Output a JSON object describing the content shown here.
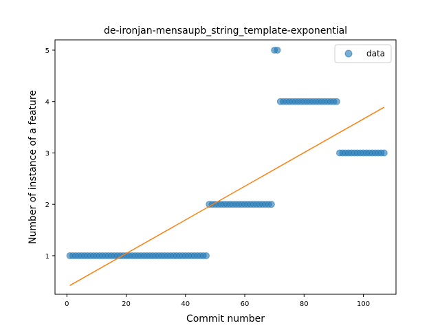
{
  "chart_data": {
    "type": "scatter",
    "title": "de-ironjan-mensaupb_string_template-exponential",
    "xlabel": "Commit number",
    "ylabel": "Number of instance of a feature",
    "xlim": [
      -4,
      111
    ],
    "ylim": [
      0.25,
      5.2
    ],
    "xticks": [
      0,
      20,
      40,
      60,
      80,
      100
    ],
    "yticks": [
      1,
      2,
      3,
      4,
      5
    ],
    "grid": false,
    "legend_position": "top-right",
    "series": [
      {
        "name": "data",
        "kind": "scatter",
        "color": "#1f77b4",
        "segments": [
          {
            "x_from": 1,
            "x_to": 47,
            "y": 1
          },
          {
            "x_from": 48,
            "x_to": 69,
            "y": 2
          },
          {
            "x_from": 70,
            "x_to": 71,
            "y": 5
          },
          {
            "x_from": 72,
            "x_to": 91,
            "y": 4
          },
          {
            "x_from": 92,
            "x_to": 107,
            "y": 3
          }
        ]
      },
      {
        "kind": "line",
        "color": "#ff7f0e",
        "points": [
          [
            1,
            0.42
          ],
          [
            107,
            3.89
          ]
        ]
      }
    ]
  }
}
